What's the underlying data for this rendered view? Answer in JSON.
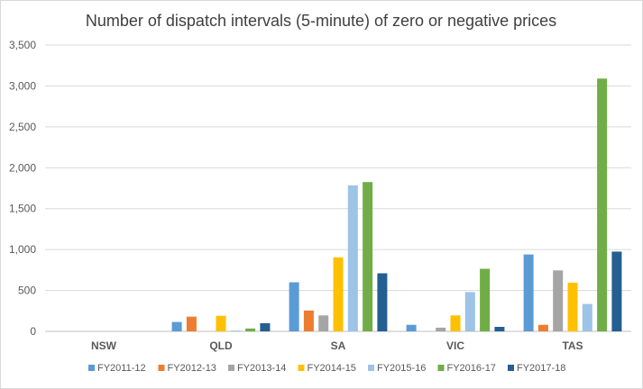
{
  "chart_data": {
    "type": "bar",
    "title": "Number of dispatch intervals (5-minute) of zero or negative prices",
    "xlabel": "",
    "ylabel": "",
    "ylim": [
      0,
      3500
    ],
    "yticks": [
      0,
      500,
      1000,
      1500,
      2000,
      2500,
      3000,
      3500
    ],
    "ytick_labels": [
      "0",
      "500",
      "1,000",
      "1,500",
      "2,000",
      "2,500",
      "3,000",
      "3,500"
    ],
    "grid": true,
    "legend_position": "bottom",
    "categories": [
      "NSW",
      "QLD",
      "SA",
      "VIC",
      "TAS"
    ],
    "series": [
      {
        "name": "FY2011-12",
        "color": "#5b9bd5",
        "values": [
          0,
          115,
          600,
          80,
          940
        ]
      },
      {
        "name": "FY2012-13",
        "color": "#ed7d31",
        "values": [
          0,
          180,
          255,
          0,
          80
        ]
      },
      {
        "name": "FY2013-14",
        "color": "#a5a5a5",
        "values": [
          0,
          0,
          195,
          45,
          745
        ]
      },
      {
        "name": "FY2014-15",
        "color": "#ffc000",
        "values": [
          0,
          190,
          905,
          195,
          595
        ]
      },
      {
        "name": "FY2015-16",
        "color": "#9dc3e6",
        "values": [
          0,
          10,
          1785,
          480,
          335
        ]
      },
      {
        "name": "FY2016-17",
        "color": "#70ad47",
        "values": [
          0,
          35,
          1825,
          765,
          3090
        ]
      },
      {
        "name": "FY2017-18",
        "color": "#255e91",
        "values": [
          0,
          100,
          710,
          55,
          975
        ]
      }
    ]
  }
}
